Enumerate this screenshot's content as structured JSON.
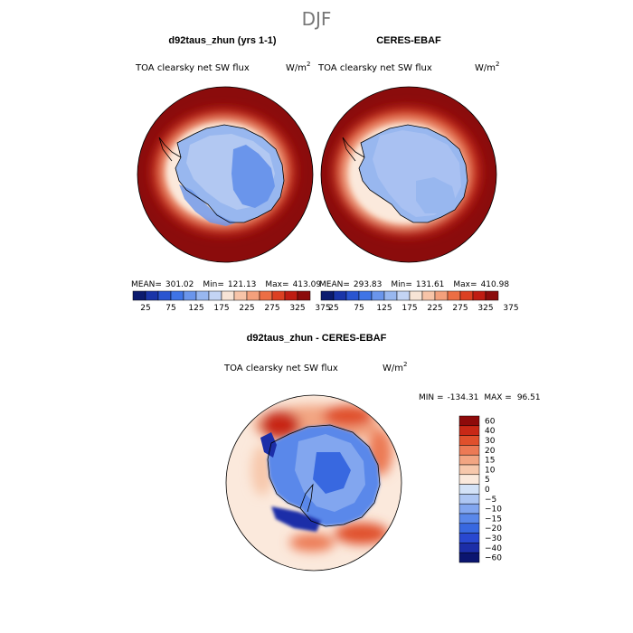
{
  "season": "DJF",
  "palettes": {
    "absolute": [
      "#0c1b6e",
      "#1a35a8",
      "#2a55d0",
      "#3f74e6",
      "#6a95eb",
      "#98b7ef",
      "#c3d4f4",
      "#f7e4d6",
      "#f7c4a8",
      "#f3a07c",
      "#ec6e44",
      "#dc4022",
      "#bf1c12",
      "#8b0c0c"
    ],
    "difference": [
      "#0b1570",
      "#1c2ea8",
      "#2948d0",
      "#3868e0",
      "#5a88ea",
      "#82a6ef",
      "#adc6f3",
      "#d3e2f7",
      "#fbe9dc",
      "#f7c8ac",
      "#f2a582",
      "#ec7a55",
      "#e0502c",
      "#c82816",
      "#8e0a0a"
    ]
  },
  "panels": {
    "model": {
      "title": "d92taus_zhun (yrs 1-1)",
      "variable": "TOA clearsky net SW flux",
      "units": "W/m",
      "units_exp": "2",
      "mean_label": "MEAN=",
      "mean": "301.02",
      "min_label": "Min=",
      "min": "121.13",
      "max_label": "Max=",
      "max": "413.09",
      "colorbar_ticks": [
        "25",
        "75",
        "125",
        "175",
        "225",
        "275",
        "325",
        "375"
      ]
    },
    "obs": {
      "title": "CERES-EBAF",
      "variable": "TOA clearsky net SW flux",
      "units": "W/m",
      "units_exp": "2",
      "mean_label": "MEAN=",
      "mean": "293.83",
      "min_label": "Min=",
      "min": "131.61",
      "max_label": "Max=",
      "max": "410.98",
      "colorbar_ticks": [
        "25",
        "75",
        "125",
        "175",
        "225",
        "275",
        "325",
        "375"
      ]
    },
    "diff": {
      "title": "d92taus_zhun - CERES-EBAF",
      "variable": "TOA clearsky net SW flux",
      "units": "W/m",
      "units_exp": "2",
      "min_label": "MIN =",
      "min": "-134.31",
      "max_label": "MAX =",
      "max": "96.51",
      "colorbar_ticks": [
        "60",
        "40",
        "30",
        "20",
        "15",
        "10",
        "5",
        "0",
        "−5",
        "−10",
        "−15",
        "−20",
        "−30",
        "−40",
        "−60"
      ]
    }
  }
}
